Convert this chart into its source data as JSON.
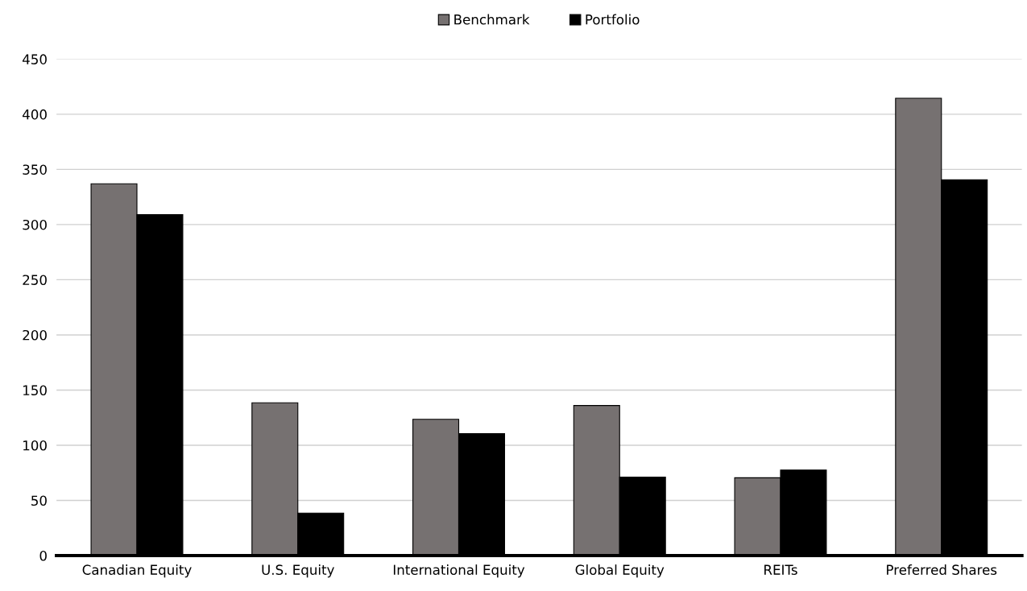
{
  "chart_data": {
    "type": "bar",
    "categories": [
      "Canadian Equity",
      "U.S. Equity",
      "International Equity",
      "Global Equity",
      "REITs",
      "Preferred Shares"
    ],
    "series": [
      {
        "name": "Benchmark",
        "color": "#767171",
        "values": [
          337,
          138.5,
          123.5,
          136,
          70.5,
          414.5
        ]
      },
      {
        "name": "Portfolio",
        "color": "#000000",
        "values": [
          309,
          38.5,
          110.5,
          71,
          77.5,
          340.5
        ]
      }
    ],
    "ylim": [
      0,
      450
    ],
    "yticks": [
      0,
      50,
      100,
      150,
      200,
      250,
      300,
      350,
      400,
      450
    ],
    "grid": "y",
    "legend": "top"
  }
}
